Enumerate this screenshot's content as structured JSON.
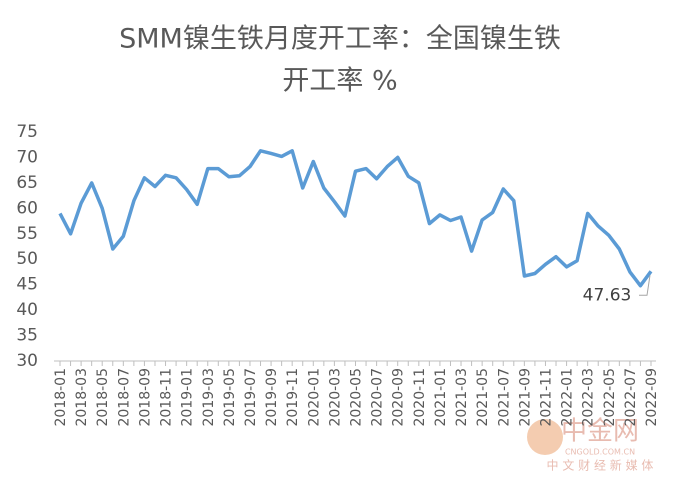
{
  "chart_data": {
    "type": "line",
    "title": [
      "SMM镍生铁月度开工率：全国镍生铁",
      "开工率 %"
    ],
    "categories": [
      "2018-01",
      null,
      "2018-03",
      null,
      "2018-05",
      null,
      "2018-07",
      null,
      "2018-09",
      null,
      "2018-11",
      null,
      "2019-01",
      null,
      "2019-03",
      null,
      "2019-05",
      null,
      "2019-07",
      null,
      "2019-09",
      null,
      "2019-11",
      null,
      "2020-01",
      null,
      "2020-03",
      null,
      "2020-05",
      null,
      "2020-07",
      null,
      "2020-09",
      null,
      "2020-11",
      null,
      "2021-01",
      null,
      "2021-03",
      null,
      "2021-05",
      null,
      "2021-07",
      null,
      "2021-09",
      null,
      "2021-11",
      null,
      "2022-01",
      null,
      "2022-03",
      null,
      "2022-05",
      null,
      "2022-07",
      null,
      "2022-09"
    ],
    "values": [
      59,
      55,
      61,
      65,
      60,
      52,
      54.5,
      61.5,
      66,
      64.3,
      66.5,
      66,
      63.7,
      60.8,
      67.8,
      67.8,
      66.2,
      66.4,
      68.2,
      71.3,
      70.8,
      70.2,
      71.3,
      64,
      69.2,
      64,
      61.3,
      58.5,
      67.3,
      67.8,
      65.8,
      68.2,
      70,
      66.3,
      65,
      57,
      58.7,
      57.6,
      58.3,
      51.6,
      57.7,
      59.2,
      63.8,
      61.5,
      46.7,
      47.2,
      49,
      50.5,
      48.5,
      49.7,
      59,
      56.5,
      54.7,
      52,
      47.5,
      44.8,
      47.63
    ],
    "color": "#5b9bd5",
    "ylim": [
      30,
      75
    ],
    "yticks": [
      30,
      35,
      40,
      45,
      50,
      55,
      60,
      65,
      70,
      75
    ],
    "grid": false,
    "watermark": {
      "name": "中金网",
      "site": "CNGOLD.COM.CN",
      "slogan": "中 文 财 经 新 媒 体"
    }
  }
}
